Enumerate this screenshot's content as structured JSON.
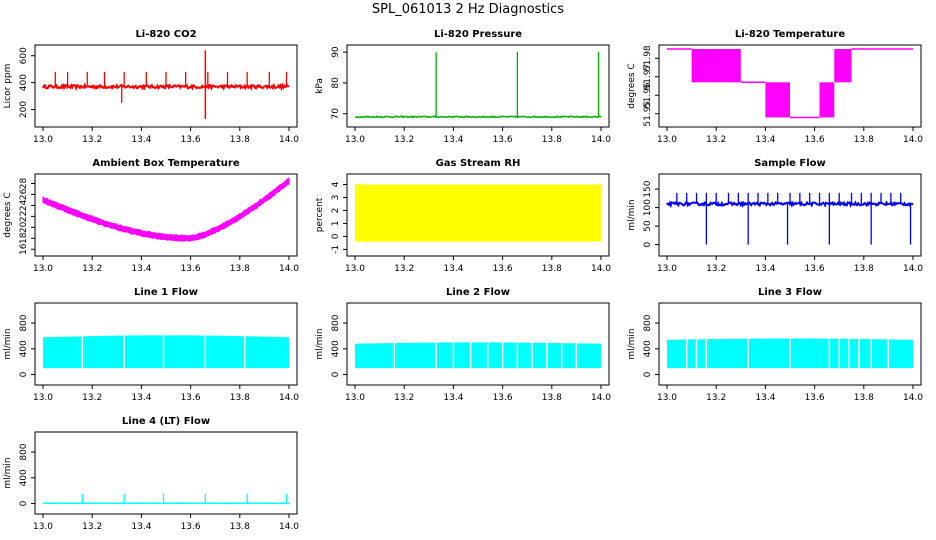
{
  "page": {
    "title": "SPL_061013  2 Hz Diagnostics"
  },
  "chart_data": [
    {
      "id": "co2",
      "type": "line",
      "title": "Li-820 CO2",
      "ylabel": "Licor ppm",
      "color": "#ff0000",
      "xlim": [
        13.0,
        14.0
      ],
      "ylim": [
        100,
        650
      ],
      "yticks": [
        200,
        400,
        600
      ],
      "x_ticks": [
        13.0,
        13.2,
        13.4,
        13.6,
        13.8,
        14.0
      ],
      "x_tick_labels": [
        "13.0",
        "13.2",
        "13.4",
        "13.6",
        "13.8",
        "14.0"
      ],
      "pattern": "noise",
      "base": 370,
      "noise": 12,
      "spikes_up": [
        13.05,
        13.1,
        13.18,
        13.25,
        13.33,
        13.42,
        13.5,
        13.58,
        13.67,
        13.75,
        13.83,
        13.92,
        13.99
      ],
      "spike_top": 480,
      "big_spike": {
        "x": 13.66,
        "high": 640,
        "low": 130
      },
      "dip": {
        "x": 13.32,
        "low": 250
      }
    },
    {
      "id": "pressure",
      "type": "line",
      "title": "Li-820 Pressure",
      "ylabel": "kPa",
      "color": "#00b000",
      "xlim": [
        13.0,
        14.0
      ],
      "ylim": [
        67,
        91
      ],
      "yticks": [
        70,
        80,
        90
      ],
      "x_ticks": [
        13.0,
        13.2,
        13.4,
        13.6,
        13.8,
        14.0
      ],
      "x_tick_labels": [
        "13.0",
        "13.2",
        "13.4",
        "13.6",
        "13.8",
        "14.0"
      ],
      "pattern": "flat-spikes",
      "base": 69,
      "noise": 0.2,
      "spike_top": 90,
      "spike_positions": [
        13.33,
        13.66,
        13.99
      ]
    },
    {
      "id": "temperature",
      "type": "line",
      "title": "Li-820 Temperature",
      "ylabel": "degrees C",
      "color": "#ff00ff",
      "xlim": [
        13.0,
        14.0
      ],
      "ylim": [
        51.945,
        51.985
      ],
      "yticks": [
        51.95,
        51.96,
        51.97,
        51.98
      ],
      "x_ticks": [
        13.0,
        13.2,
        13.4,
        13.6,
        13.8,
        14.0
      ],
      "x_tick_labels": [
        "13.0",
        "13.2",
        "13.4",
        "13.6",
        "13.8",
        "14.0"
      ],
      "pattern": "quantized",
      "levels": [
        51.948,
        51.967,
        51.985
      ]
    },
    {
      "id": "ambient",
      "type": "line",
      "title": "Ambient Box Temperature",
      "ylabel": "degrees C",
      "color": "#ff00ff",
      "xlim": [
        13.0,
        14.0
      ],
      "ylim": [
        15.5,
        29
      ],
      "yticks": [
        16,
        18,
        20,
        22,
        24,
        26,
        28
      ],
      "x_ticks": [
        13.0,
        13.2,
        13.4,
        13.6,
        13.8,
        14.0
      ],
      "x_tick_labels": [
        "13.0",
        "13.2",
        "13.4",
        "13.6",
        "13.8",
        "14.0"
      ],
      "pattern": "curve",
      "noise": 0.6
    },
    {
      "id": "rh",
      "type": "line",
      "title": "Gas Stream RH",
      "ylabel": "percent",
      "color": "#ffff00",
      "xlim": [
        13.0,
        14.0
      ],
      "ylim": [
        -1.2,
        4.5
      ],
      "yticks": [
        -1,
        0,
        1,
        2,
        3,
        4
      ],
      "x_ticks": [
        13.0,
        13.2,
        13.4,
        13.6,
        13.8,
        14.0
      ],
      "x_tick_labels": [
        "13.0",
        "13.2",
        "13.4",
        "13.6",
        "13.8",
        "14.0"
      ],
      "pattern": "band",
      "low": -0.4,
      "high": 4.0
    },
    {
      "id": "sample",
      "type": "line",
      "title": "Sample Flow",
      "ylabel": "ml/min",
      "color": "#0000ff",
      "xlim": [
        13.0,
        14.0
      ],
      "ylim": [
        -20,
        180
      ],
      "yticks": [
        0,
        50,
        100,
        150
      ],
      "x_ticks": [
        13.0,
        13.2,
        13.4,
        13.6,
        13.8,
        14.0
      ],
      "x_tick_labels": [
        "13.0",
        "13.2",
        "13.4",
        "13.6",
        "13.8",
        "14.0"
      ],
      "pattern": "noise",
      "base": 110,
      "noise": 4,
      "spikes_up": [
        13.04,
        13.08,
        13.12,
        13.16,
        13.2,
        13.25,
        13.29,
        13.33,
        13.37,
        13.41,
        13.45,
        13.5,
        13.54,
        13.58,
        13.62,
        13.66,
        13.7,
        13.75,
        13.79,
        13.83,
        13.87,
        13.91,
        13.95
      ],
      "spike_top": 140,
      "dips": [
        13.16,
        13.33,
        13.49,
        13.66,
        13.83,
        13.99
      ]
    },
    {
      "id": "line1",
      "type": "line",
      "title": "Line 1 Flow",
      "ylabel": "ml/min",
      "color": "#00ffff",
      "xlim": [
        13.0,
        14.0
      ],
      "ylim": [
        -100,
        1050
      ],
      "yticks": [
        0,
        400,
        800
      ],
      "x_ticks": [
        13.0,
        13.2,
        13.4,
        13.6,
        13.8,
        14.0
      ],
      "x_tick_labels": [
        "13.0",
        "13.2",
        "13.4",
        "13.6",
        "13.8",
        "14.0"
      ],
      "pattern": "block",
      "low": 100,
      "high": [
        580,
        610,
        580
      ],
      "gaps": [
        13.16,
        13.33,
        13.49,
        13.66,
        13.82
      ]
    },
    {
      "id": "line2",
      "type": "line",
      "title": "Line 2 Flow",
      "ylabel": "ml/min",
      "color": "#00ffff",
      "xlim": [
        13.0,
        14.0
      ],
      "ylim": [
        -100,
        1050
      ],
      "yticks": [
        0,
        400,
        800
      ],
      "x_ticks": [
        13.0,
        13.2,
        13.4,
        13.6,
        13.8,
        14.0
      ],
      "x_tick_labels": [
        "13.0",
        "13.2",
        "13.4",
        "13.6",
        "13.8",
        "14.0"
      ],
      "pattern": "block",
      "low": 100,
      "high": [
        480,
        500,
        480
      ],
      "gaps": [
        13.16,
        13.33,
        13.4,
        13.47,
        13.54,
        13.6,
        13.66,
        13.72,
        13.78,
        13.84,
        13.9
      ]
    },
    {
      "id": "line3",
      "type": "line",
      "title": "Line 3 Flow",
      "ylabel": "ml/min",
      "color": "#00ffff",
      "xlim": [
        13.0,
        14.0
      ],
      "ylim": [
        -100,
        1050
      ],
      "yticks": [
        0,
        400,
        800
      ],
      "x_ticks": [
        13.0,
        13.2,
        13.4,
        13.6,
        13.8,
        14.0
      ],
      "x_tick_labels": [
        "13.0",
        "13.2",
        "13.4",
        "13.6",
        "13.8",
        "14.0"
      ],
      "pattern": "block",
      "low": 100,
      "high": [
        540,
        560,
        540
      ],
      "gaps": [
        13.08,
        13.12,
        13.16,
        13.33,
        13.5,
        13.66,
        13.7,
        13.74,
        13.78,
        13.83,
        13.9
      ]
    },
    {
      "id": "line4",
      "type": "line",
      "title": "Line 4 (LT) Flow",
      "ylabel": "ml/min",
      "color": "#00ffff",
      "xlim": [
        13.0,
        14.0
      ],
      "ylim": [
        -100,
        1050
      ],
      "yticks": [
        0,
        400,
        800
      ],
      "x_ticks": [
        13.0,
        13.2,
        13.4,
        13.6,
        13.8,
        14.0
      ],
      "x_tick_labels": [
        "13.0",
        "13.2",
        "13.4",
        "13.6",
        "13.8",
        "14.0"
      ],
      "pattern": "flat-spikes",
      "base": 5,
      "noise": 2,
      "spike_top": 150,
      "spike_positions": [
        13.16,
        13.33,
        13.49,
        13.66,
        13.83,
        13.99
      ]
    }
  ]
}
